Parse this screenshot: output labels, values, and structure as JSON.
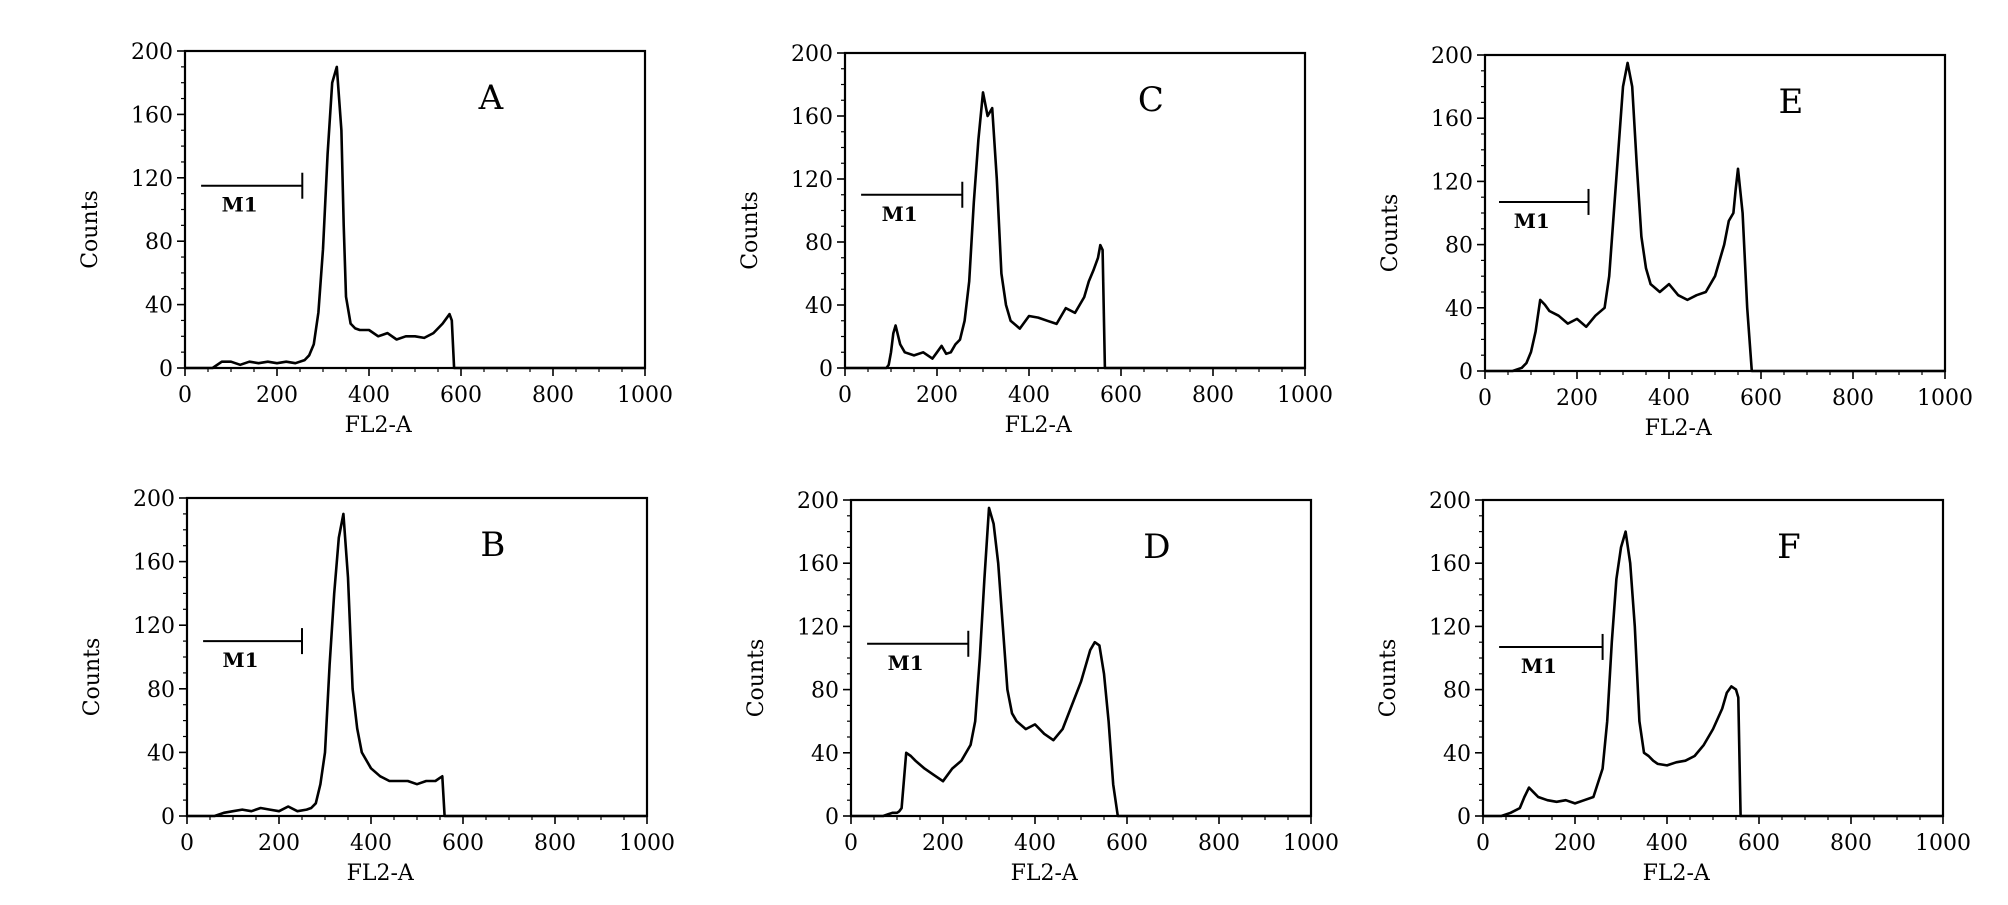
{
  "figure": {
    "panels_order": [
      "A",
      "C",
      "E",
      "B",
      "D",
      "F"
    ]
  },
  "chart_data": [
    {
      "type": "line",
      "panel_label": "A",
      "xlabel": "FL2-A",
      "ylabel": "Counts",
      "xlim": [
        0,
        1000
      ],
      "ylim": [
        0,
        200
      ],
      "x_ticks": [
        "0",
        "200",
        "400",
        "600",
        "800",
        "1000"
      ],
      "y_ticks": [
        "0",
        "40",
        "80",
        "120",
        "160",
        "200"
      ],
      "grid": false,
      "legend": "none",
      "marker": {
        "label": "M1",
        "x_start": 35,
        "x_end": 255,
        "y": 115
      },
      "series": [
        {
          "x": [
            0,
            60,
            80,
            100,
            120,
            140,
            160,
            180,
            200,
            220,
            240,
            260,
            270,
            280,
            290,
            300,
            310,
            320,
            330,
            340,
            345,
            350,
            360,
            370,
            380,
            400,
            420,
            440,
            460,
            480,
            500,
            520,
            540,
            560,
            570,
            575,
            580,
            585,
            1000
          ],
          "y": [
            0,
            0,
            4,
            4,
            2,
            4,
            3,
            4,
            3,
            4,
            3,
            5,
            8,
            15,
            35,
            75,
            135,
            180,
            190,
            150,
            90,
            45,
            28,
            25,
            24,
            24,
            20,
            22,
            18,
            20,
            20,
            19,
            22,
            28,
            32,
            34,
            30,
            0,
            0
          ]
        }
      ]
    },
    {
      "type": "line",
      "panel_label": "C",
      "xlabel": "FL2-A",
      "ylabel": "Counts",
      "xlim": [
        0,
        1000
      ],
      "ylim": [
        0,
        200
      ],
      "x_ticks": [
        "0",
        "200",
        "400",
        "600",
        "800",
        "1000"
      ],
      "y_ticks": [
        "0",
        "40",
        "80",
        "120",
        "160",
        "200"
      ],
      "grid": false,
      "legend": "none",
      "marker": {
        "label": "M1",
        "x_start": 35,
        "x_end": 255,
        "y": 110
      },
      "series": [
        {
          "x": [
            0,
            90,
            95,
            100,
            105,
            110,
            120,
            130,
            150,
            170,
            190,
            200,
            210,
            220,
            230,
            240,
            250,
            260,
            270,
            280,
            290,
            300,
            310,
            320,
            330,
            340,
            350,
            360,
            380,
            400,
            420,
            440,
            460,
            480,
            500,
            520,
            530,
            540,
            550,
            555,
            560,
            565,
            1000
          ],
          "y": [
            0,
            0,
            2,
            10,
            22,
            27,
            15,
            10,
            8,
            10,
            6,
            10,
            14,
            9,
            10,
            15,
            18,
            30,
            55,
            105,
            145,
            175,
            160,
            165,
            120,
            60,
            40,
            30,
            25,
            33,
            32,
            30,
            28,
            38,
            35,
            45,
            55,
            62,
            70,
            78,
            75,
            0,
            0
          ]
        }
      ]
    },
    {
      "type": "line",
      "panel_label": "E",
      "xlabel": "FL2-A",
      "ylabel": "Counts",
      "xlim": [
        0,
        1000
      ],
      "ylim": [
        0,
        200
      ],
      "x_ticks": [
        "0",
        "200",
        "400",
        "600",
        "800",
        "1000"
      ],
      "y_ticks": [
        "0",
        "40",
        "80",
        "120",
        "160",
        "200"
      ],
      "grid": false,
      "legend": "none",
      "marker": {
        "label": "M1",
        "x_start": 0,
        "x_end": 225,
        "y": 107
      },
      "series": [
        {
          "x": [
            0,
            60,
            80,
            90,
            100,
            110,
            120,
            130,
            140,
            160,
            180,
            200,
            220,
            240,
            260,
            270,
            280,
            290,
            300,
            310,
            320,
            330,
            340,
            350,
            360,
            380,
            400,
            420,
            440,
            460,
            480,
            500,
            520,
            530,
            540,
            545,
            550,
            560,
            570,
            580,
            1000
          ],
          "y": [
            0,
            0,
            2,
            5,
            12,
            25,
            45,
            42,
            38,
            35,
            30,
            33,
            28,
            35,
            40,
            60,
            100,
            140,
            180,
            195,
            180,
            130,
            85,
            65,
            55,
            50,
            55,
            48,
            45,
            48,
            50,
            60,
            80,
            95,
            100,
            115,
            128,
            100,
            40,
            0,
            0
          ]
        }
      ]
    },
    {
      "type": "line",
      "panel_label": "B",
      "xlabel": "FL2-A",
      "ylabel": "Counts",
      "xlim": [
        0,
        1000
      ],
      "ylim": [
        0,
        200
      ],
      "x_ticks": [
        "0",
        "200",
        "400",
        "600",
        "800",
        "1000"
      ],
      "y_ticks": [
        "0",
        "40",
        "80",
        "120",
        "160",
        "200"
      ],
      "grid": false,
      "legend": "none",
      "marker": {
        "label": "M1",
        "x_start": 35,
        "x_end": 250,
        "y": 110
      },
      "series": [
        {
          "x": [
            0,
            60,
            80,
            100,
            120,
            140,
            160,
            180,
            200,
            220,
            240,
            260,
            270,
            280,
            290,
            300,
            310,
            320,
            330,
            340,
            350,
            360,
            370,
            380,
            400,
            420,
            440,
            460,
            480,
            500,
            520,
            540,
            550,
            555,
            560,
            1000
          ],
          "y": [
            0,
            0,
            2,
            3,
            4,
            3,
            5,
            4,
            3,
            6,
            3,
            4,
            5,
            8,
            20,
            40,
            95,
            140,
            175,
            190,
            150,
            80,
            55,
            40,
            30,
            25,
            22,
            22,
            22,
            20,
            22,
            22,
            24,
            25,
            0,
            0
          ]
        }
      ]
    },
    {
      "type": "line",
      "panel_label": "D",
      "xlabel": "FL2-A",
      "ylabel": "Counts",
      "xlim": [
        0,
        1000
      ],
      "ylim": [
        0,
        200
      ],
      "x_ticks": [
        "0",
        "200",
        "400",
        "600",
        "800",
        "1000"
      ],
      "y_ticks": [
        "0",
        "40",
        "80",
        "120",
        "160",
        "200"
      ],
      "grid": false,
      "legend": "none",
      "marker": {
        "label": "M1",
        "x_start": 35,
        "x_end": 255,
        "y": 109
      },
      "series": [
        {
          "x": [
            0,
            70,
            80,
            90,
            100,
            105,
            110,
            120,
            130,
            140,
            160,
            180,
            200,
            220,
            240,
            260,
            270,
            280,
            290,
            300,
            310,
            320,
            330,
            340,
            350,
            360,
            380,
            400,
            420,
            440,
            460,
            480,
            500,
            520,
            530,
            540,
            550,
            560,
            570,
            580,
            1000
          ],
          "y": [
            0,
            0,
            1,
            2,
            2,
            3,
            5,
            40,
            38,
            35,
            30,
            26,
            22,
            30,
            35,
            45,
            60,
            100,
            150,
            195,
            185,
            160,
            120,
            80,
            65,
            60,
            55,
            58,
            52,
            48,
            55,
            70,
            85,
            105,
            110,
            108,
            90,
            60,
            20,
            0,
            0
          ]
        }
      ]
    },
    {
      "type": "line",
      "panel_label": "F",
      "xlabel": "FL2-A",
      "ylabel": "Counts",
      "xlim": [
        0,
        1000
      ],
      "ylim": [
        0,
        200
      ],
      "x_ticks": [
        "0",
        "200",
        "400",
        "600",
        "800",
        "1000"
      ],
      "y_ticks": [
        "0",
        "40",
        "80",
        "120",
        "160",
        "200"
      ],
      "grid": false,
      "legend": "none",
      "marker": {
        "label": "M1",
        "x_start": 35,
        "x_end": 260,
        "y": 107
      },
      "series": [
        {
          "x": [
            0,
            40,
            60,
            80,
            90,
            100,
            110,
            120,
            140,
            160,
            180,
            200,
            220,
            240,
            260,
            270,
            280,
            290,
            300,
            310,
            320,
            330,
            340,
            350,
            360,
            370,
            380,
            400,
            420,
            440,
            460,
            480,
            500,
            520,
            530,
            540,
            550,
            555,
            560,
            1000
          ],
          "y": [
            0,
            0,
            2,
            5,
            12,
            18,
            15,
            12,
            10,
            9,
            10,
            8,
            10,
            12,
            30,
            60,
            110,
            150,
            170,
            180,
            160,
            120,
            60,
            40,
            38,
            35,
            33,
            32,
            34,
            35,
            38,
            45,
            55,
            68,
            78,
            82,
            80,
            75,
            0,
            0
          ]
        }
      ]
    }
  ]
}
